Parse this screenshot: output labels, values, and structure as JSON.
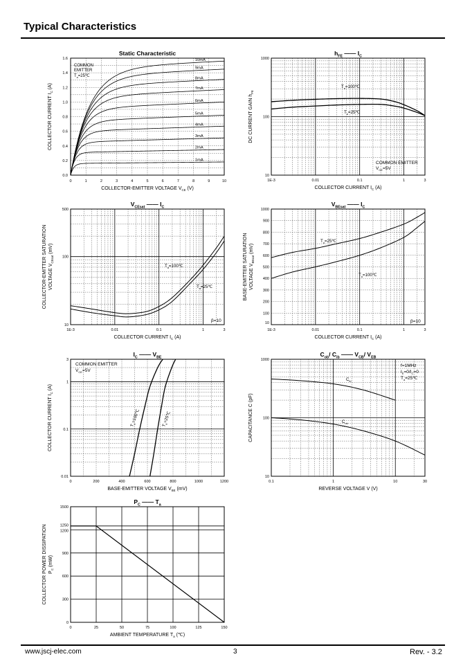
{
  "page": {
    "heading": "Typical Characteristics",
    "footer_left": "www.jscj-elec.com",
    "footer_center": "3",
    "footer_right": "Rev. - 3.2"
  },
  "chart_data": [
    {
      "id": "static",
      "type": "line",
      "title": "Static Characteristic",
      "xlabel": "COLLECTOR-EMITTER VOLTAGE   V",
      "xlabel_sub": "CE",
      "xlabel_unit": "(V)",
      "ylabel": "COLLECTOR CURRENT   I",
      "ylabel_sub": "C",
      "ylabel_unit": "(A)",
      "x_ticks": [
        "0",
        "1",
        "2",
        "3",
        "4",
        "5",
        "6",
        "7",
        "8",
        "9",
        "10"
      ],
      "y_ticks": [
        "0.0",
        "0.2",
        "0.4",
        "0.6",
        "0.8",
        "1.0",
        "1.2",
        "1.4",
        "1.6"
      ],
      "xlim": [
        0,
        10
      ],
      "ylim": [
        0,
        1.6
      ],
      "annotations": [
        "COMMON",
        "EMITTER",
        "T",
        "a",
        "=25℃"
      ],
      "series": [
        {
          "name": "1mA",
          "sat": 0.16,
          "slope": 0.002
        },
        {
          "name": "2mA",
          "sat": 0.31,
          "slope": 0.004
        },
        {
          "name": "3mA",
          "sat": 0.45,
          "slope": 0.006
        },
        {
          "name": "4mA",
          "sat": 0.6,
          "slope": 0.007
        },
        {
          "name": "5mA",
          "sat": 0.74,
          "slope": 0.008
        },
        {
          "name": "6mA",
          "sat": 0.91,
          "slope": 0.009
        },
        {
          "name": "7mA",
          "sat": 1.07,
          "slope": 0.01
        },
        {
          "name": "8mA",
          "sat": 1.21,
          "slope": 0.01
        },
        {
          "name": "9mA",
          "sat": 1.35,
          "slope": 0.01
        },
        {
          "name": "10mA",
          "sat": 1.46,
          "slope": 0.01
        }
      ]
    },
    {
      "id": "hfe",
      "type": "line",
      "title_main": "h",
      "title_sub": "FE",
      "title_dash": "——",
      "title_main2": "I",
      "title_sub2": "C",
      "xlabel": "COLLECTOR CURRENT   I",
      "xlabel_sub": "C",
      "xlabel_unit": "(A)",
      "ylabel": "DC CURRENT GAIN   h",
      "ylabel_sub": "FE",
      "x_scale": "log",
      "y_scale": "log",
      "xlim": [
        0.001,
        3
      ],
      "ylim": [
        10,
        1000
      ],
      "x_ticks": [
        "1E-3",
        "0.01",
        "0.1",
        "1",
        "3"
      ],
      "y_ticks": [
        "10",
        "100",
        "1000"
      ],
      "annotations": [
        "COMMON EMITTER",
        "V",
        "CE",
        "=5V"
      ],
      "series": [
        {
          "name": "T=100℃",
          "label_main": "T",
          "label_sub": "a",
          "label_rest": "=100℃",
          "points": [
            [
              0.001,
              180
            ],
            [
              0.003,
              190
            ],
            [
              0.01,
              198
            ],
            [
              0.03,
              203
            ],
            [
              0.1,
              205
            ],
            [
              0.3,
              200
            ],
            [
              0.6,
              182
            ],
            [
              1,
              160
            ],
            [
              2,
              126
            ],
            [
              3,
              104
            ]
          ]
        },
        {
          "name": "T=25℃",
          "label_main": "T",
          "label_sub": "a",
          "label_rest": "=25℃",
          "points": [
            [
              0.001,
              135
            ],
            [
              0.003,
              145
            ],
            [
              0.01,
              152
            ],
            [
              0.03,
              158
            ],
            [
              0.1,
              162
            ],
            [
              0.3,
              162
            ],
            [
              0.6,
              152
            ],
            [
              1,
              140
            ],
            [
              2,
              118
            ],
            [
              3,
              104
            ]
          ]
        }
      ]
    },
    {
      "id": "vcesat",
      "type": "line",
      "title_main": "V",
      "title_sub": "CEsat",
      "title_dash": "——",
      "title_main2": "I",
      "title_sub2": "C",
      "xlabel": "COLLECTOR CURRENT   I",
      "xlabel_sub": "C",
      "xlabel_unit": "(A)",
      "ylabel1": "COLLECTOR-EMITTER SATURATION",
      "ylabel2": "VOLTAGE   V",
      "ylabel2_sub": "CEsat",
      "ylabel2_unit": "(mV)",
      "x_scale": "log",
      "y_scale": "log",
      "xlim": [
        0.001,
        3
      ],
      "ylim": [
        10,
        500
      ],
      "x_ticks": [
        "1E-3",
        "0.01",
        "0.1",
        "1",
        "3"
      ],
      "y_ticks": [
        "10",
        "100",
        "500"
      ],
      "annotations": [
        "β=10"
      ],
      "series": [
        {
          "name": "T=100℃",
          "label_main": "T",
          "label_sub": "a",
          "label_rest": "=100℃",
          "points": [
            [
              0.001,
              19
            ],
            [
              0.003,
              17
            ],
            [
              0.01,
              15
            ],
            [
              0.02,
              14.5
            ],
            [
              0.05,
              15.5
            ],
            [
              0.1,
              18.5
            ],
            [
              0.2,
              25
            ],
            [
              0.5,
              45
            ],
            [
              1,
              75
            ],
            [
              2,
              135
            ],
            [
              3,
              200
            ]
          ]
        },
        {
          "name": "T=25℃",
          "label_main": "T",
          "label_sub": "a",
          "label_rest": "=25℃",
          "points": [
            [
              0.001,
              17
            ],
            [
              0.003,
              15
            ],
            [
              0.01,
              13.5
            ],
            [
              0.02,
              13
            ],
            [
              0.05,
              14
            ],
            [
              0.1,
              16.5
            ],
            [
              0.2,
              22
            ],
            [
              0.5,
              40
            ],
            [
              1,
              65
            ],
            [
              2,
              115
            ],
            [
              3,
              170
            ]
          ]
        }
      ]
    },
    {
      "id": "vbesat",
      "type": "line",
      "title_main": "V",
      "title_sub": "BEsat",
      "title_dash": "——",
      "title_main2": "I",
      "title_sub2": "C",
      "xlabel": "COLLECTOR CURRENT   I",
      "xlabel_sub": "C",
      "xlabel_unit": "(A)",
      "ylabel1": "BASE-EMITTER SATURATION",
      "ylabel2": "VOLTAGE   V",
      "ylabel2_sub": "BEsat",
      "ylabel2_unit": "(mV)",
      "x_scale": "log",
      "xlim": [
        0.001,
        3
      ],
      "ylim": [
        0,
        1000
      ],
      "x_ticks": [
        "1E-3",
        "0.01",
        "0.1",
        "1",
        "3"
      ],
      "y_ticks": [
        "10",
        "100",
        "200",
        "300",
        "400",
        "500",
        "600",
        "700",
        "800",
        "900",
        "1000"
      ],
      "annotations": [
        "β=10"
      ],
      "series": [
        {
          "name": "T=25℃",
          "label_main": "T",
          "label_sub": "a",
          "label_rest": "=25℃",
          "points": [
            [
              0.001,
              580
            ],
            [
              0.003,
              625
            ],
            [
              0.01,
              660
            ],
            [
              0.03,
              700
            ],
            [
              0.1,
              745
            ],
            [
              0.3,
              800
            ],
            [
              1,
              870
            ],
            [
              2,
              930
            ],
            [
              3,
              970
            ]
          ]
        },
        {
          "name": "T=100℃",
          "label_main": "T",
          "label_sub": "a",
          "label_rest": "=100℃",
          "points": [
            [
              0.001,
              400
            ],
            [
              0.003,
              455
            ],
            [
              0.01,
              500
            ],
            [
              0.03,
              545
            ],
            [
              0.1,
              600
            ],
            [
              0.3,
              665
            ],
            [
              1,
              755
            ],
            [
              2,
              840
            ],
            [
              3,
              895
            ]
          ]
        }
      ]
    },
    {
      "id": "icvbe",
      "type": "line",
      "title_main": "I",
      "title_sub": "C",
      "title_dash": "——",
      "title_main2": "V",
      "title_sub2": "BE",
      "xlabel": "BASE-EMITTER VOLTAGE   V",
      "xlabel_sub": "BE",
      "xlabel_unit": "(mV)",
      "ylabel": "COLLECTOR CURRENT   I",
      "ylabel_sub": "C",
      "ylabel_unit": "(A)",
      "y_scale": "log",
      "xlim": [
        0,
        1200
      ],
      "ylim": [
        0.01,
        3
      ],
      "x_ticks": [
        "0",
        "200",
        "400",
        "600",
        "800",
        "1000",
        "1200"
      ],
      "y_ticks": [
        "0.01",
        "0.1",
        "1",
        "3"
      ],
      "annotations": [
        "COMMON EMITTER",
        "V",
        "CE",
        "=5V"
      ],
      "series": [
        {
          "name": "T=100℃",
          "label_main": "T",
          "label_sub": "a",
          "label_rest": "=100℃",
          "points": [
            [
              460,
              0.01
            ],
            [
              500,
              0.03
            ],
            [
              540,
              0.1
            ],
            [
              580,
              0.3
            ],
            [
              620,
              0.8
            ],
            [
              680,
              2
            ],
            [
              720,
              3
            ]
          ]
        },
        {
          "name": "T=25℃",
          "label_main": "T",
          "label_sub": "a",
          "label_rest": "=25℃",
          "points": [
            [
              620,
              0.01
            ],
            [
              650,
              0.03
            ],
            [
              680,
              0.1
            ],
            [
              710,
              0.3
            ],
            [
              740,
              0.8
            ],
            [
              790,
              2
            ],
            [
              820,
              3
            ]
          ]
        }
      ]
    },
    {
      "id": "cob",
      "type": "line",
      "title_main": "C",
      "title_sub": "ob",
      "title_sep": "/ C",
      "title_sub_b": "ib",
      "title_dash": "——",
      "title_main2": "V",
      "title_sub2": "CB",
      "title_sep2": "/ V",
      "title_sub3": "EB",
      "xlabel": "REVERSE VOLTAGE   V   (V)",
      "ylabel": "CAPACITANCE   C   (pF)",
      "x_scale": "log",
      "y_scale": "log",
      "xlim": [
        0.1,
        30
      ],
      "ylim": [
        10,
        1000
      ],
      "x_ticks": [
        "0.1",
        "1",
        "10",
        "30"
      ],
      "y_ticks": [
        "10",
        "100",
        "1000"
      ],
      "annotations": [
        "f=1MHz",
        "I",
        "E",
        "=0/I",
        "C",
        "=0",
        "T",
        "a",
        "=25℃"
      ],
      "series": [
        {
          "name": "Cib",
          "label_main": "C",
          "label_sub": "ib",
          "points": [
            [
              0.1,
              460
            ],
            [
              0.3,
              430
            ],
            [
              1,
              380
            ],
            [
              3,
              300
            ],
            [
              10,
              200
            ]
          ]
        },
        {
          "name": "Cob",
          "label_main": "C",
          "label_sub": "ob",
          "points": [
            [
              0.1,
              100
            ],
            [
              0.3,
              92
            ],
            [
              1,
              78
            ],
            [
              3,
              60
            ],
            [
              10,
              40
            ],
            [
              30,
              23
            ]
          ]
        }
      ]
    },
    {
      "id": "pcta",
      "type": "line",
      "title_main": "P",
      "title_sub": "C",
      "title_dash": "——",
      "title_main2": "T",
      "title_sub2": "a",
      "xlabel": "AMBIENT TEMPERATURE   T",
      "xlabel_sub": "a",
      "xlabel_unit": "(℃)",
      "ylabel1": "COLLECTOR POWER DISSIPATION",
      "ylabel2": "P",
      "ylabel2_sub": "C",
      "ylabel2_unit": "(mW)",
      "xlim": [
        0,
        150
      ],
      "ylim": [
        0,
        1500
      ],
      "x_ticks": [
        "0",
        "25",
        "50",
        "75",
        "100",
        "125",
        "150"
      ],
      "y_ticks": [
        "0",
        "300",
        "600",
        "900",
        "1200",
        "1250",
        "1500"
      ],
      "series": [
        {
          "name": "Pc",
          "points": [
            [
              0,
              1250
            ],
            [
              25,
              1250
            ],
            [
              150,
              0
            ]
          ]
        }
      ]
    }
  ]
}
